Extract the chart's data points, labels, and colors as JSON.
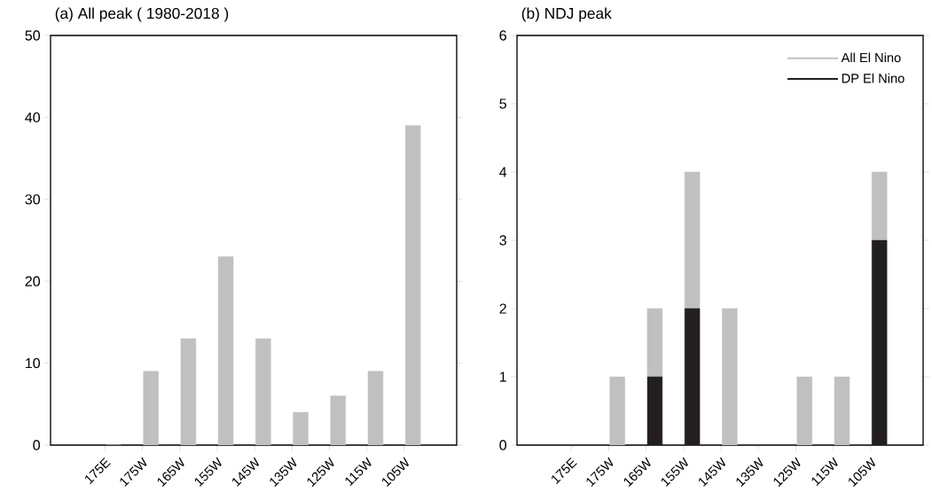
{
  "chart_data": [
    {
      "type": "bar",
      "title": "(a) All peak ( 1980-2018 )",
      "categories": [
        "175E",
        "175W",
        "165W",
        "155W",
        "145W",
        "135W",
        "125W",
        "115W",
        "105W"
      ],
      "series": [
        {
          "color": "#c0c0c0",
          "values": [
            0,
            9,
            13,
            23,
            13,
            4,
            6,
            9,
            39
          ]
        }
      ],
      "ylim": [
        0,
        50
      ],
      "yticks": [
        0,
        10,
        20,
        30,
        40,
        50
      ],
      "grid": false,
      "legend": false
    },
    {
      "type": "bar",
      "title": "(b) NDJ peak",
      "categories": [
        "175E",
        "175W",
        "165W",
        "155W",
        "145W",
        "135W",
        "125W",
        "115W",
        "105W"
      ],
      "stacked": true,
      "series": [
        {
          "name": "DP El Nino",
          "color": "#231f20",
          "values": [
            0,
            0,
            1,
            2,
            0,
            0,
            0,
            0,
            3
          ]
        },
        {
          "name": "All El Nino",
          "color": "#c0c0c0",
          "values": [
            0,
            1,
            1,
            2,
            2,
            0,
            1,
            1,
            1
          ]
        }
      ],
      "ylim": [
        0,
        6
      ],
      "yticks": [
        0,
        1,
        2,
        3,
        4,
        5,
        6
      ],
      "grid": false,
      "legend": "top right"
    }
  ]
}
